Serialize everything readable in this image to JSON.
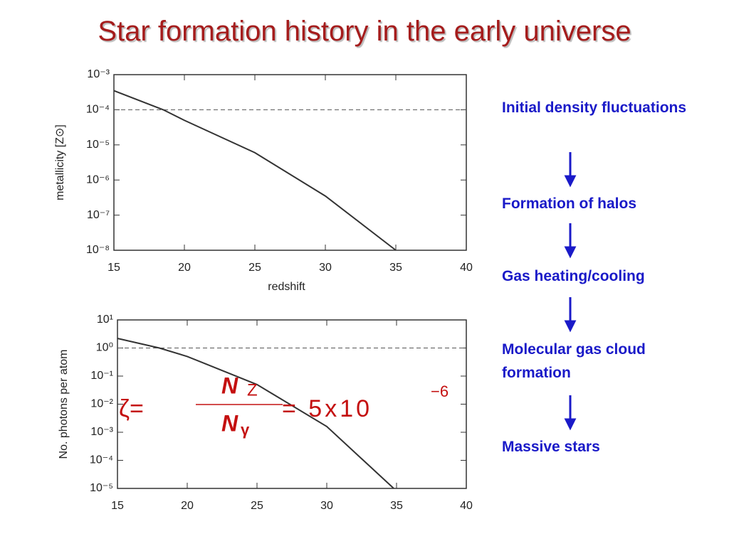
{
  "title": "Star formation history in the early universe",
  "chart_data": [
    {
      "type": "line",
      "log_y": true,
      "x": [
        15,
        18.5,
        20,
        25,
        30,
        35
      ],
      "values": [
        0.00035,
        0.0001,
        5e-05,
        6e-06,
        3.5e-07,
        1e-08
      ],
      "color": "#333333",
      "xlim": [
        15,
        40
      ],
      "xticks": [
        15,
        20,
        25,
        30,
        35,
        40
      ],
      "ylim": [
        1e-08,
        0.001
      ],
      "yticks": [
        {
          "value": 1e-08,
          "label": "10⁻⁸"
        },
        {
          "value": 1e-07,
          "label": "10⁻⁷"
        },
        {
          "value": 1e-06,
          "label": "10⁻⁶"
        },
        {
          "value": 1e-05,
          "label": "10⁻⁵"
        },
        {
          "value": 0.0001,
          "label": "10⁻⁴"
        },
        {
          "value": 0.001,
          "label": "10⁻³"
        }
      ],
      "hline": 0.0001,
      "xlabel": "redshift",
      "ylabel": "metallicity [Z⊙]"
    },
    {
      "type": "line",
      "log_y": true,
      "x": [
        15,
        18,
        20,
        25,
        30,
        34.8
      ],
      "values": [
        2.2,
        1,
        0.5,
        0.05,
        0.0016,
        1e-05
      ],
      "color": "#333333",
      "xlim": [
        15,
        40
      ],
      "xticks": [
        15,
        20,
        25,
        30,
        35,
        40
      ],
      "ylim": [
        1e-05,
        10
      ],
      "yticks": [
        {
          "value": 1e-05,
          "label": "10⁻⁵"
        },
        {
          "value": 0.0001,
          "label": "10⁻⁴"
        },
        {
          "value": 0.001,
          "label": "10⁻³"
        },
        {
          "value": 0.01,
          "label": "10⁻²"
        },
        {
          "value": 0.1,
          "label": "10⁻¹"
        },
        {
          "value": 1,
          "label": "10⁰"
        },
        {
          "value": 10,
          "label": "10¹"
        }
      ],
      "hline": 1,
      "ylabel": "No. photons per atom"
    }
  ],
  "formula": {
    "lhs": "ζ=",
    "numerator": "N",
    "numerator_sub": "Z",
    "denominator": "N",
    "denominator_sub": "γ",
    "rhs": "= 5x10",
    "exponent": "−6"
  },
  "flow": [
    "Initial density fluctuations",
    "Formation of halos",
    "Gas heating/cooling",
    "Molecular gas cloud formation",
    "Massive stars"
  ]
}
